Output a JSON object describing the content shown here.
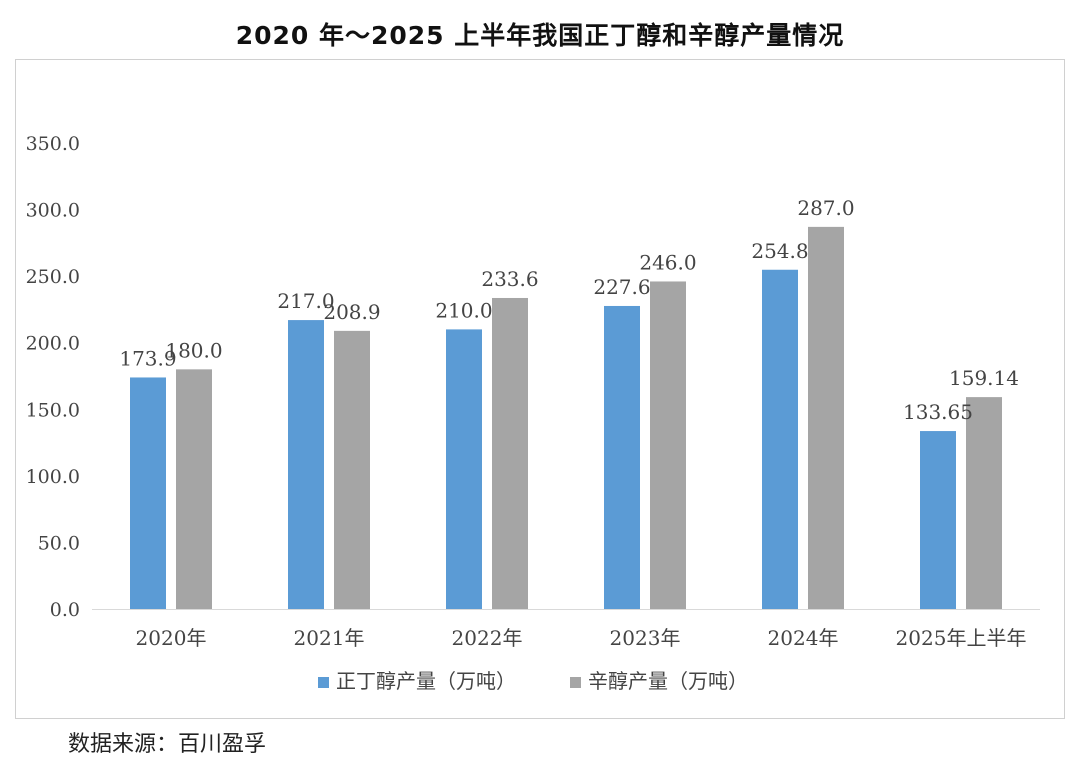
{
  "chart_data": {
    "type": "bar",
    "title": "2020 年～2025 上半年我国正丁醇和辛醇产量情况",
    "categories": [
      "2020年",
      "2021年",
      "2022年",
      "2023年",
      "2024年",
      "2025年上半年"
    ],
    "series": [
      {
        "name": "正丁醇产量（万吨）",
        "color": "#5b9bd5",
        "values": [
          173.9,
          217.0,
          210.0,
          227.6,
          254.8,
          133.65
        ],
        "labels": [
          "173.9",
          "217.0",
          "210.0",
          "227.6",
          "254.8",
          "133.65"
        ]
      },
      {
        "name": "辛醇产量（万吨）",
        "color": "#a5a5a5",
        "values": [
          180.0,
          208.9,
          233.6,
          246.0,
          287.0,
          159.14
        ],
        "labels": [
          "180.0",
          "208.9",
          "233.6",
          "246.0",
          "287.0",
          "159.14"
        ]
      }
    ],
    "yticks": [
      "0.0",
      "50.0",
      "100.0",
      "150.0",
      "200.0",
      "250.0",
      "300.0",
      "350.0"
    ],
    "ylim": [
      0,
      350
    ],
    "xlabel": "",
    "ylabel": "",
    "legend_position": "bottom",
    "grid": false
  },
  "source": "数据来源：百川盈孚"
}
